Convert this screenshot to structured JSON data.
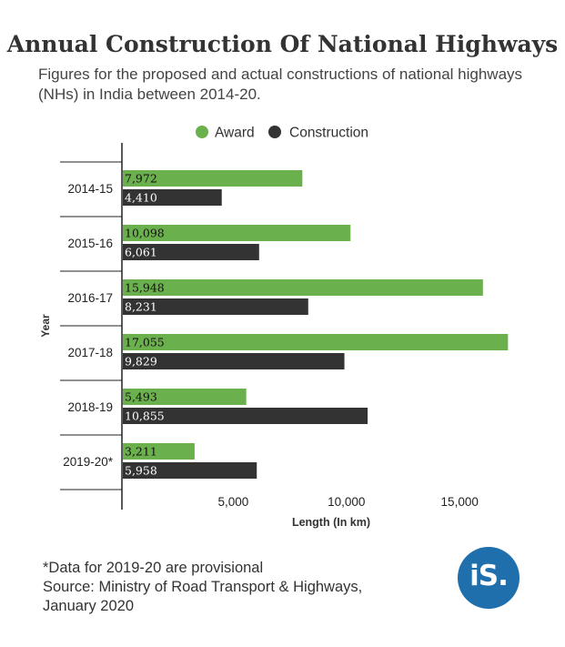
{
  "title": "Annual Construction Of National Highways",
  "subtitle": "Figures for the proposed and actual constructions of national highways (NHs) in India between 2014-20.",
  "footnote": "*Data for 2019-20 are provisional",
  "source_line1": "Source: Ministry of Road Transport & Highways,",
  "source_line2": "January 2020",
  "logo_text": "iS.",
  "colors": {
    "award": "#6ab04c",
    "construction": "#333333",
    "logo": "#1f6fad"
  },
  "chart_data": {
    "type": "bar",
    "orientation": "horizontal",
    "categories": [
      "2014-15",
      "2015-16",
      "2016-17",
      "2017-18",
      "2018-19",
      "2019-20*"
    ],
    "series": [
      {
        "name": "Award",
        "color": "#6ab04c",
        "values": [
          7972,
          10098,
          15948,
          17055,
          5493,
          3211
        ],
        "labels": [
          "7,972",
          "10,098",
          "15,948",
          "17,055",
          "5,493",
          "3,211"
        ]
      },
      {
        "name": "Construction",
        "color": "#333333",
        "values": [
          4410,
          6061,
          8231,
          9829,
          10855,
          5958
        ],
        "labels": [
          "4,410",
          "6,061",
          "8,231",
          "9,829",
          "10,855",
          "5,958"
        ]
      }
    ],
    "xlabel": "Length (In km)",
    "ylabel": "Year",
    "xlim": [
      0,
      18000
    ],
    "xticks": [
      5000,
      10000,
      15000
    ],
    "xtick_labels": [
      "5,000",
      "10,000",
      "15,000"
    ],
    "legend_position": "top",
    "grid": false
  }
}
